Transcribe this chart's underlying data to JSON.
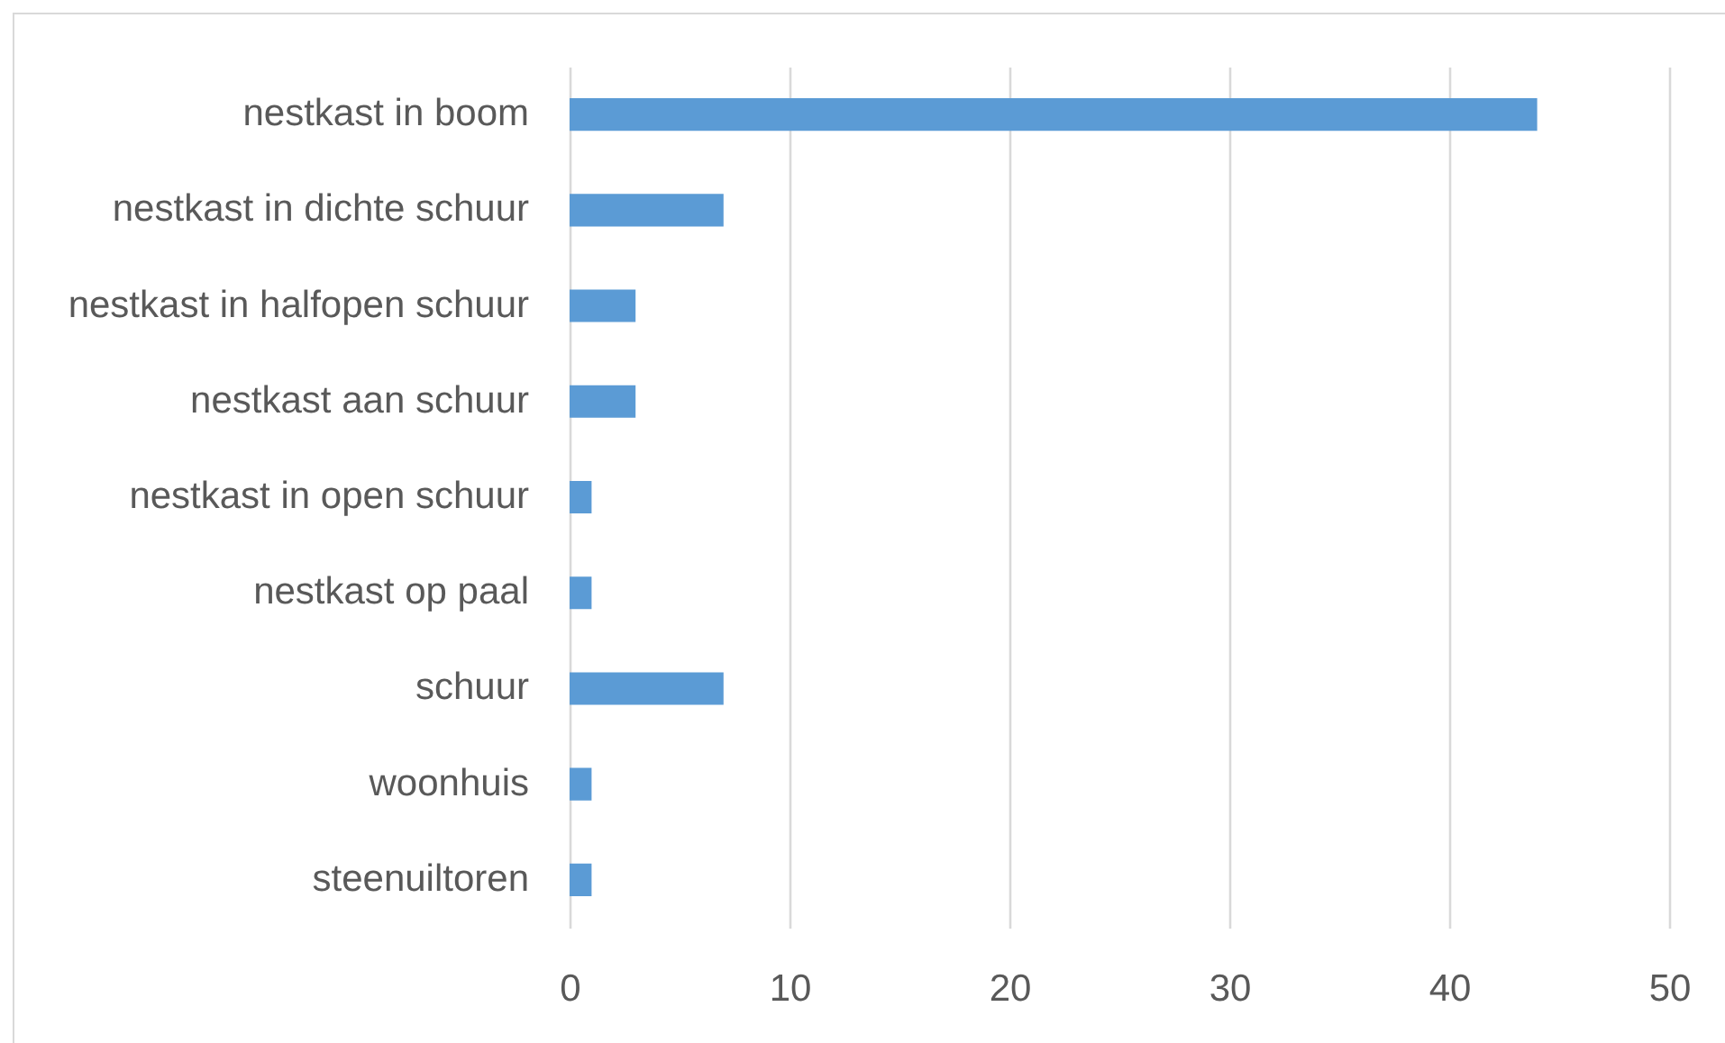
{
  "chart_data": {
    "type": "bar",
    "orientation": "horizontal",
    "categories": [
      "nestkast in boom",
      "nestkast in dichte schuur",
      "nestkast in halfopen schuur",
      "nestkast aan schuur",
      "nestkast in open schuur",
      "nestkast op paal",
      "schuur",
      "woonhuis",
      "steenuiltoren"
    ],
    "values": [
      44,
      7,
      3,
      3,
      1,
      1,
      7,
      1,
      1
    ],
    "color": "#5b9bd5",
    "xlim": [
      0,
      50
    ],
    "xticks": [
      0,
      10,
      20,
      30,
      40,
      50
    ],
    "grid": "x"
  }
}
